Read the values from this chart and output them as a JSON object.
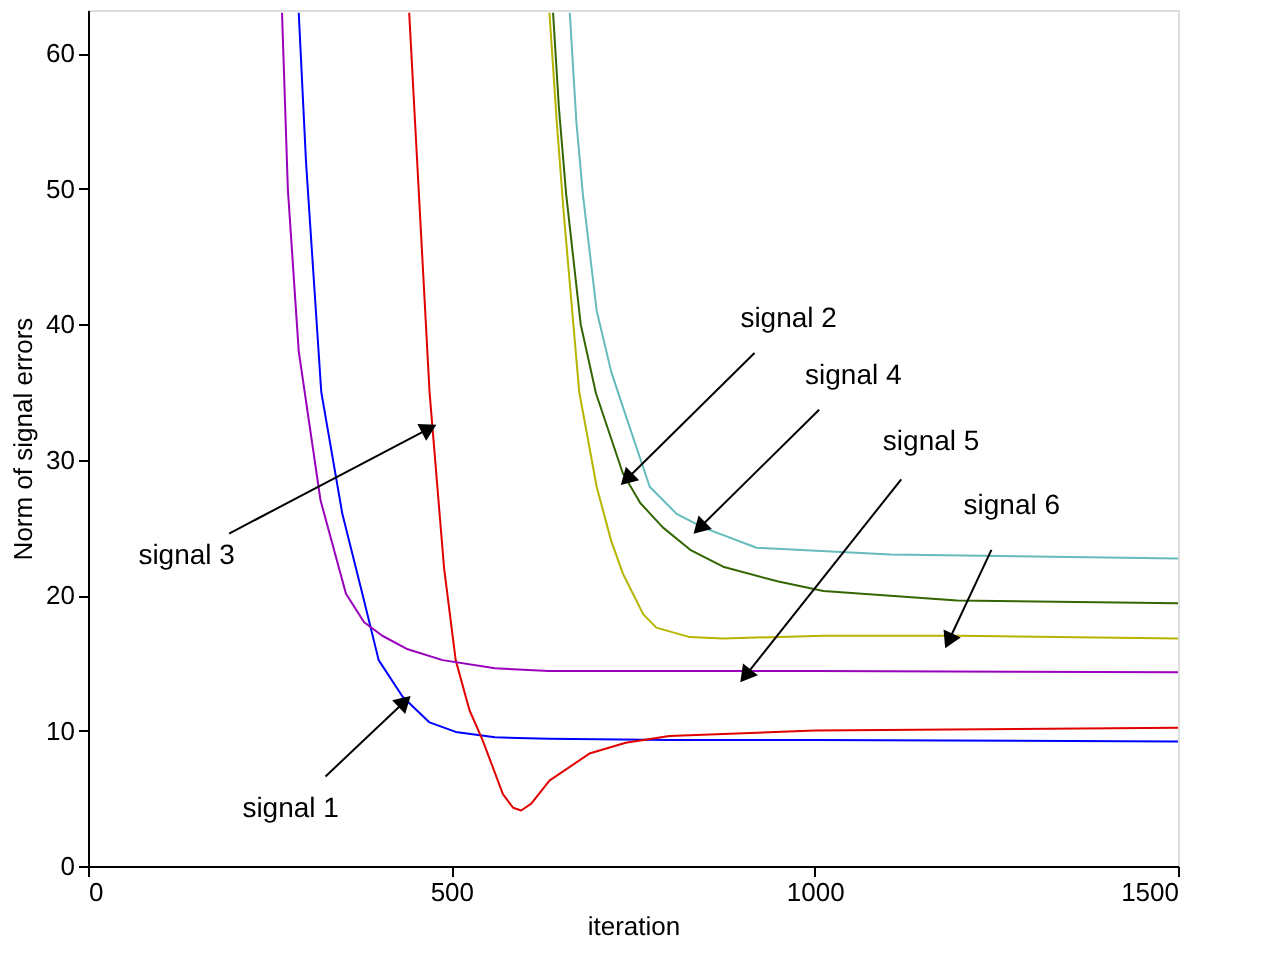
{
  "chart_data": {
    "type": "line",
    "xlabel": "iteration",
    "ylabel": "Norm of signal errors",
    "xlim": [
      0,
      1500
    ],
    "ylim": [
      0,
      63.2
    ],
    "xticks": [
      0,
      500,
      1000,
      1500
    ],
    "yticks": [
      0,
      10,
      20,
      30,
      40,
      50,
      60
    ],
    "grid": false,
    "legend": false,
    "series": [
      {
        "color": "#0000ff",
        "x": [
          290,
          300,
          321,
          350,
          378,
          400,
          433,
          470,
          506,
          560,
          634,
          800,
          1000,
          1500
        ],
        "values": [
          63,
          52,
          35,
          26,
          20,
          15.2,
          12.5,
          10.6,
          9.9,
          9.5,
          9.4,
          9.3,
          9.3,
          9.2
        ]
      },
      {
        "color": "#336600",
        "x": [
          640,
          648,
          658,
          678,
          699,
          736,
          760,
          791,
          830,
          874,
          950,
          1012,
          1196,
          1500
        ],
        "values": [
          63,
          56,
          49.6,
          40,
          34.9,
          29,
          26.8,
          25,
          23.3,
          22.1,
          21,
          20.3,
          19.6,
          19.4
        ]
      },
      {
        "color": "#e00000",
        "x": [
          442,
          455,
          470,
          490,
          506,
          525,
          543,
          571,
          585,
          596,
          610,
          635,
          690,
          740,
          800,
          1000,
          1500
        ],
        "values": [
          63,
          50,
          35,
          22,
          15.2,
          11.5,
          9.3,
          5.3,
          4.3,
          4.1,
          4.6,
          6.3,
          8.3,
          9.1,
          9.6,
          10.0,
          10.2
        ]
      },
      {
        "color": "#66bbbb",
        "x": [
          663,
          672,
          681,
          700,
          720,
          736,
          773,
          810,
          846,
          920,
          1104,
          1500
        ],
        "values": [
          63,
          55,
          49.6,
          41,
          36.5,
          33.9,
          28,
          26,
          25,
          23.5,
          23,
          22.7
        ]
      },
      {
        "color": "#9900bb",
        "x": [
          267,
          275,
          290,
          320,
          355,
          380,
          405,
          440,
          488,
          560,
          634,
          1000,
          1500
        ],
        "values": [
          63,
          50,
          38,
          27,
          20.1,
          18,
          17,
          16,
          15.2,
          14.6,
          14.4,
          14.4,
          14.3
        ]
      },
      {
        "color": "#b5b500",
        "x": [
          635,
          645,
          655,
          676,
          700,
          720,
          736,
          764,
          782,
          828,
          874,
          1012,
          1200,
          1500
        ],
        "values": [
          63,
          55,
          48,
          35,
          28,
          24,
          21.6,
          18.6,
          17.6,
          16.9,
          16.8,
          17.0,
          17.0,
          16.8
        ]
      }
    ],
    "annotations": [
      {
        "text": "signal 1",
        "x": 433,
        "y": 12.0
      },
      {
        "text": "signal 3",
        "x": 466,
        "y": 32.2
      },
      {
        "text": "signal 2",
        "x": 744,
        "y": 28.7
      },
      {
        "text": "signal 4",
        "x": 844,
        "y": 25.1
      },
      {
        "text": "signal 5",
        "x": 907,
        "y": 14.2
      },
      {
        "text": "signal 6",
        "x": 1186,
        "y": 16.8
      }
    ]
  }
}
